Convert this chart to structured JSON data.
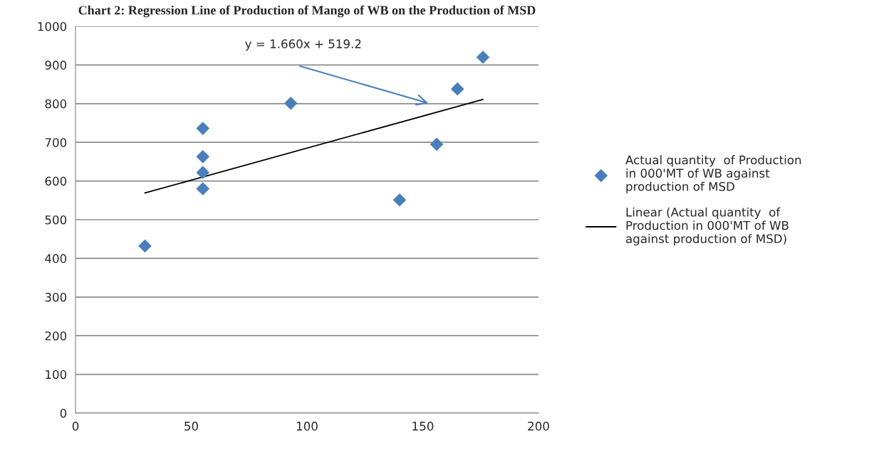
{
  "chart_data": {
    "type": "scatter",
    "title": "Chart 2: Regression Line of Production of Mango of WB on the Production of MSD",
    "series": [
      {
        "name": "Actual quantity  of Production\nin 000'MT of WB against\nproduction of MSD",
        "color": "#4a7ebb",
        "marker": "diamond",
        "x": [
          30,
          55,
          55,
          55,
          55,
          93,
          140,
          156,
          165,
          176
        ],
        "values": [
          432,
          736,
          663,
          622,
          580,
          801,
          551,
          695,
          838,
          920
        ]
      },
      {
        "type": "line",
        "name": "Linear (Actual quantity  of\nProduction in 000'MT of WB\nagainst production of MSD)",
        "color": "#000000",
        "marker": "none",
        "line_style": "solid",
        "x": [
          30,
          176
        ],
        "values": [
          569,
          811
        ]
      }
    ],
    "annotations": [
      "y = 1.660x + 519.2"
    ],
    "xlim": [
      0,
      200
    ],
    "xticks": [
      0,
      50,
      100,
      150,
      200
    ],
    "ylim": [
      0,
      1000
    ],
    "yticks": [
      0,
      100,
      200,
      300,
      400,
      500,
      600,
      700,
      800,
      900,
      1000
    ],
    "grid": "y",
    "legend": "right"
  }
}
